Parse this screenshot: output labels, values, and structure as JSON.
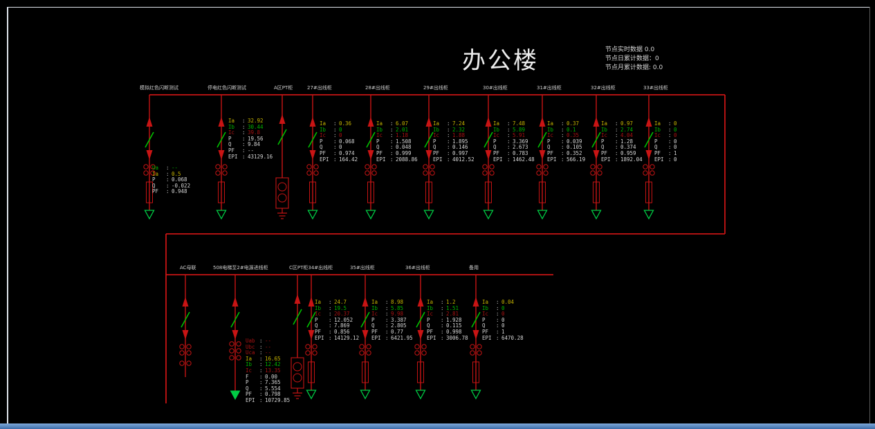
{
  "title": "办公楼",
  "node_info": {
    "realtime": "节点实时数据  0.0",
    "daily": "节点日累计数据：0",
    "monthly": "节点月累计数据: 0.0"
  },
  "colors": {
    "bus_red": "#c81414",
    "switch_green": "#00c000",
    "load_triangle_green": "#00cc44",
    "phase_a_yellow": "#c7b500",
    "phase_b_green": "#00b400",
    "phase_c_red": "#a81212",
    "text_white": "#d6d6d6",
    "bottom_bar_blue": "#4a7fc1"
  },
  "top_feeders": [
    {
      "label": "模拟红色闪断测试"
    },
    {
      "label": "停电红色闪断测试"
    },
    {
      "label": "A区PT柜"
    },
    {
      "label": "27#出线柜"
    },
    {
      "label": "28#出线柜"
    },
    {
      "label": "29#出线柜"
    },
    {
      "label": "30#出线柜"
    },
    {
      "label": "31#出线柜"
    },
    {
      "label": "32#出线柜"
    },
    {
      "label": "33#出线柜"
    }
  ],
  "bottom_feeders": [
    {
      "label": "AC母联"
    },
    {
      "label": "508电梯至2#电源进线柜"
    },
    {
      "label": "C区PT柜34#出线柜"
    },
    {
      "label": "35#出线柜"
    },
    {
      "label": "36#出线柜"
    },
    {
      "label": "备用"
    }
  ],
  "blocks": {
    "incomer1": {
      "rows": [
        {
          "k": "Ua",
          "v": "--",
          "c": "pb"
        },
        {
          "k": "Ia",
          "v": "0.5",
          "c": "pa"
        },
        {
          "k": "P",
          "v": "0.068",
          "c": "pw"
        },
        {
          "k": "Q",
          "v": "-0.022",
          "c": "pw"
        },
        {
          "k": "PF",
          "v": "0.948",
          "c": "pw"
        }
      ]
    },
    "test2": {
      "rows": [
        {
          "k": "Ia",
          "v": "32.92",
          "c": "pa"
        },
        {
          "k": "Ib",
          "v": "30.44",
          "c": "pb"
        },
        {
          "k": "Ic",
          "v": "39.8",
          "c": "pc"
        },
        {
          "k": "P",
          "v": "19.56",
          "c": "pw"
        },
        {
          "k": "Q",
          "v": "9.84",
          "c": "pw"
        },
        {
          "k": "PF",
          "v": "--",
          "c": "pw"
        },
        {
          "k": "EPI",
          "v": "43129.16",
          "c": "pw"
        }
      ]
    },
    "k27": {
      "rows": [
        {
          "k": "Ia",
          "v": "0.36",
          "c": "pa"
        },
        {
          "k": "Ib",
          "v": "0",
          "c": "pb"
        },
        {
          "k": "Ic",
          "v": "0",
          "c": "pc"
        },
        {
          "k": "P",
          "v": "0.068",
          "c": "pw"
        },
        {
          "k": "Q",
          "v": "0",
          "c": "pw"
        },
        {
          "k": "PF",
          "v": "0.974",
          "c": "pw"
        },
        {
          "k": "EPI",
          "v": "164.42",
          "c": "pw"
        }
      ]
    },
    "k28": {
      "rows": [
        {
          "k": "Ia",
          "v": "6.07",
          "c": "pa"
        },
        {
          "k": "Ib",
          "v": "2.01",
          "c": "pb"
        },
        {
          "k": "Ic",
          "v": "1.18",
          "c": "pc"
        },
        {
          "k": "P",
          "v": "1.508",
          "c": "pw"
        },
        {
          "k": "Q",
          "v": "0.048",
          "c": "pw"
        },
        {
          "k": "PF",
          "v": "0.999",
          "c": "pw"
        },
        {
          "k": "EPI",
          "v": "2088.86",
          "c": "pw"
        }
      ]
    },
    "k29": {
      "rows": [
        {
          "k": "Ia",
          "v": "7.24",
          "c": "pa"
        },
        {
          "k": "Ib",
          "v": "2.32",
          "c": "pb"
        },
        {
          "k": "Ic",
          "v": "1.88",
          "c": "pc"
        },
        {
          "k": "P",
          "v": "1.895",
          "c": "pw"
        },
        {
          "k": "Q",
          "v": "0.146",
          "c": "pw"
        },
        {
          "k": "PF",
          "v": "0.997",
          "c": "pw"
        },
        {
          "k": "EPI",
          "v": "4012.52",
          "c": "pw"
        }
      ]
    },
    "k30": {
      "rows": [
        {
          "k": "Ia",
          "v": "7.48",
          "c": "pa"
        },
        {
          "k": "Ib",
          "v": "5.89",
          "c": "pb"
        },
        {
          "k": "Ic",
          "v": "5.91",
          "c": "pc"
        },
        {
          "k": "P",
          "v": "3.369",
          "c": "pw"
        },
        {
          "k": "Q",
          "v": "2.673",
          "c": "pw"
        },
        {
          "k": "PF",
          "v": "0.783",
          "c": "pw"
        },
        {
          "k": "EPI",
          "v": "1462.48",
          "c": "pw"
        }
      ]
    },
    "k31": {
      "rows": [
        {
          "k": "Ia",
          "v": "0.37",
          "c": "pa"
        },
        {
          "k": "Ib",
          "v": "0.1",
          "c": "pb"
        },
        {
          "k": "Ic",
          "v": "0.35",
          "c": "pc"
        },
        {
          "k": "P",
          "v": "0.039",
          "c": "pw"
        },
        {
          "k": "Q",
          "v": "0.105",
          "c": "pw"
        },
        {
          "k": "PF",
          "v": "0.352",
          "c": "pw"
        },
        {
          "k": "EPI",
          "v": "566.19",
          "c": "pw"
        }
      ]
    },
    "k32": {
      "rows": [
        {
          "k": "Ia",
          "v": "0.97",
          "c": "pa"
        },
        {
          "k": "Ib",
          "v": "2.74",
          "c": "pb"
        },
        {
          "k": "Ic",
          "v": "4.04",
          "c": "pc"
        },
        {
          "k": "P",
          "v": "1.28",
          "c": "pw"
        },
        {
          "k": "Q",
          "v": "0.374",
          "c": "pw"
        },
        {
          "k": "PF",
          "v": "0.959",
          "c": "pw"
        },
        {
          "k": "EPI",
          "v": "1892.04",
          "c": "pw"
        }
      ]
    },
    "k33": {
      "rows": [
        {
          "k": "Ia",
          "v": "0",
          "c": "pa"
        },
        {
          "k": "Ib",
          "v": "0",
          "c": "pb"
        },
        {
          "k": "Ic",
          "v": "0",
          "c": "pc"
        },
        {
          "k": "P",
          "v": "0",
          "c": "pw"
        },
        {
          "k": "Q",
          "v": "0",
          "c": "pw"
        },
        {
          "k": "PF",
          "v": "1",
          "c": "pw"
        },
        {
          "k": "EPI",
          "v": "0",
          "c": "pw"
        }
      ]
    },
    "inc508": {
      "rows": [
        {
          "k": "Uab",
          "v": "--",
          "c": "pc"
        },
        {
          "k": "Ubc",
          "v": "--",
          "c": "pc"
        },
        {
          "k": "Uca",
          "v": "--",
          "c": "pc"
        },
        {
          "k": "Ia",
          "v": "16.65",
          "c": "pa"
        },
        {
          "k": "Ib",
          "v": "12.42",
          "c": "pb"
        },
        {
          "k": "Ic",
          "v": "13.35",
          "c": "pc"
        },
        {
          "k": "F",
          "v": "0.00",
          "c": "pw"
        },
        {
          "k": "P",
          "v": "7.365",
          "c": "pw"
        },
        {
          "k": "Q",
          "v": "5.554",
          "c": "pw"
        },
        {
          "k": "PF",
          "v": "0.798",
          "c": "pw"
        },
        {
          "k": "EPI",
          "v": "10729.85",
          "c": "pw"
        }
      ]
    },
    "k34": {
      "rows": [
        {
          "k": "Ia",
          "v": "24.7",
          "c": "pa"
        },
        {
          "k": "Ib",
          "v": "19.5",
          "c": "pb"
        },
        {
          "k": "Ic",
          "v": "20.37",
          "c": "pc"
        },
        {
          "k": "P",
          "v": "12.052",
          "c": "pw"
        },
        {
          "k": "Q",
          "v": "7.869",
          "c": "pw"
        },
        {
          "k": "PF",
          "v": "0.856",
          "c": "pw"
        },
        {
          "k": "EPI",
          "v": "14129.12",
          "c": "pw"
        }
      ]
    },
    "k35": {
      "rows": [
        {
          "k": "Ia",
          "v": "8.98",
          "c": "pa"
        },
        {
          "k": "Ib",
          "v": "5.85",
          "c": "pb"
        },
        {
          "k": "Ic",
          "v": "9.98",
          "c": "pc"
        },
        {
          "k": "P",
          "v": "3.387",
          "c": "pw"
        },
        {
          "k": "Q",
          "v": "2.805",
          "c": "pw"
        },
        {
          "k": "PF",
          "v": "0.77",
          "c": "pw"
        },
        {
          "k": "EPI",
          "v": "6421.95",
          "c": "pw"
        }
      ]
    },
    "k36": {
      "rows": [
        {
          "k": "Ia",
          "v": "1.2",
          "c": "pa"
        },
        {
          "k": "Ib",
          "v": "1.51",
          "c": "pb"
        },
        {
          "k": "Ic",
          "v": "2.81",
          "c": "pc"
        },
        {
          "k": "P",
          "v": "1.928",
          "c": "pw"
        },
        {
          "k": "Q",
          "v": "0.115",
          "c": "pw"
        },
        {
          "k": "PF",
          "v": "0.998",
          "c": "pw"
        },
        {
          "k": "EPI",
          "v": "3006.78",
          "c": "pw"
        }
      ]
    },
    "spare": {
      "rows": [
        {
          "k": "Ia",
          "v": "0.04",
          "c": "pa"
        },
        {
          "k": "Ib",
          "v": "0",
          "c": "pb"
        },
        {
          "k": "Ic",
          "v": "0",
          "c": "pc"
        },
        {
          "k": "P",
          "v": "0",
          "c": "pw"
        },
        {
          "k": "Q",
          "v": "0",
          "c": "pw"
        },
        {
          "k": "PF",
          "v": "1",
          "c": "pw"
        },
        {
          "k": "EPI",
          "v": "6470.28",
          "c": "pw"
        }
      ]
    }
  }
}
